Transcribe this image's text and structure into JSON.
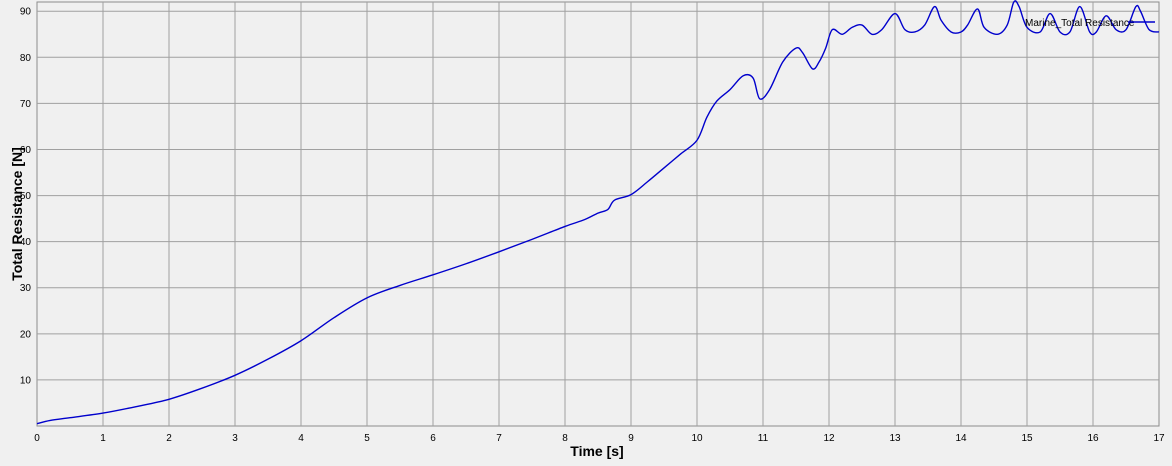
{
  "chart_data": {
    "type": "line",
    "title": "",
    "xlabel": "Time [s]",
    "ylabel": "Total Resistance [N]",
    "xlim": [
      0,
      17
    ],
    "ylim": [
      0,
      92
    ],
    "xticks": [
      0,
      1,
      2,
      3,
      4,
      5,
      6,
      7,
      8,
      9,
      10,
      11,
      12,
      13,
      14,
      15,
      16,
      17
    ],
    "yticks": [
      10,
      20,
      30,
      40,
      50,
      60,
      70,
      80,
      90
    ],
    "grid": true,
    "legend_position": "top-right",
    "colors": {
      "line": "#0000cc",
      "grid": "#a0a0a0",
      "background": "#f0f0f0"
    },
    "series": [
      {
        "name": "Marine_Total Resistance",
        "x": [
          0,
          0.2,
          0.5,
          1.0,
          1.5,
          2.0,
          2.5,
          3.0,
          3.5,
          4.0,
          4.5,
          5.0,
          5.5,
          6.0,
          6.5,
          7.0,
          7.5,
          8.0,
          8.3,
          8.5,
          8.65,
          8.75,
          9.0,
          9.25,
          9.5,
          9.75,
          10.0,
          10.15,
          10.3,
          10.5,
          10.7,
          10.85,
          10.95,
          11.1,
          11.3,
          11.5,
          11.6,
          11.75,
          11.85,
          11.95,
          12.05,
          12.2,
          12.35,
          12.5,
          12.65,
          12.8,
          13.0,
          13.15,
          13.3,
          13.45,
          13.6,
          13.7,
          13.85,
          14.0,
          14.1,
          14.25,
          14.35,
          14.55,
          14.7,
          14.8,
          14.88,
          15.0,
          15.2,
          15.35,
          15.5,
          15.65,
          15.8,
          15.95,
          16.05,
          16.2,
          16.35,
          16.5,
          16.65,
          16.72,
          16.85,
          17.0
        ],
        "y": [
          0.5,
          1.2,
          1.8,
          2.8,
          4.2,
          5.8,
          8.2,
          11.0,
          14.5,
          18.5,
          23.5,
          27.8,
          30.5,
          32.8,
          35.2,
          37.8,
          40.5,
          43.3,
          44.8,
          46.2,
          47.0,
          49.0,
          50.2,
          53.0,
          56.0,
          59.0,
          62.0,
          67.0,
          70.5,
          73.0,
          76.0,
          75.5,
          71.0,
          73.0,
          79.0,
          82.0,
          81.0,
          77.5,
          79.0,
          82.0,
          86.0,
          85.0,
          86.5,
          87.0,
          85.0,
          86.0,
          89.5,
          86.0,
          85.5,
          87.0,
          91.0,
          88.0,
          85.5,
          85.5,
          87.0,
          90.5,
          86.5,
          85.0,
          87.0,
          92.0,
          91.0,
          86.5,
          85.5,
          89.5,
          85.5,
          85.5,
          91.0,
          85.5,
          85.5,
          89.0,
          86.0,
          86.0,
          91.0,
          90.0,
          86.0,
          85.5
        ]
      }
    ]
  }
}
